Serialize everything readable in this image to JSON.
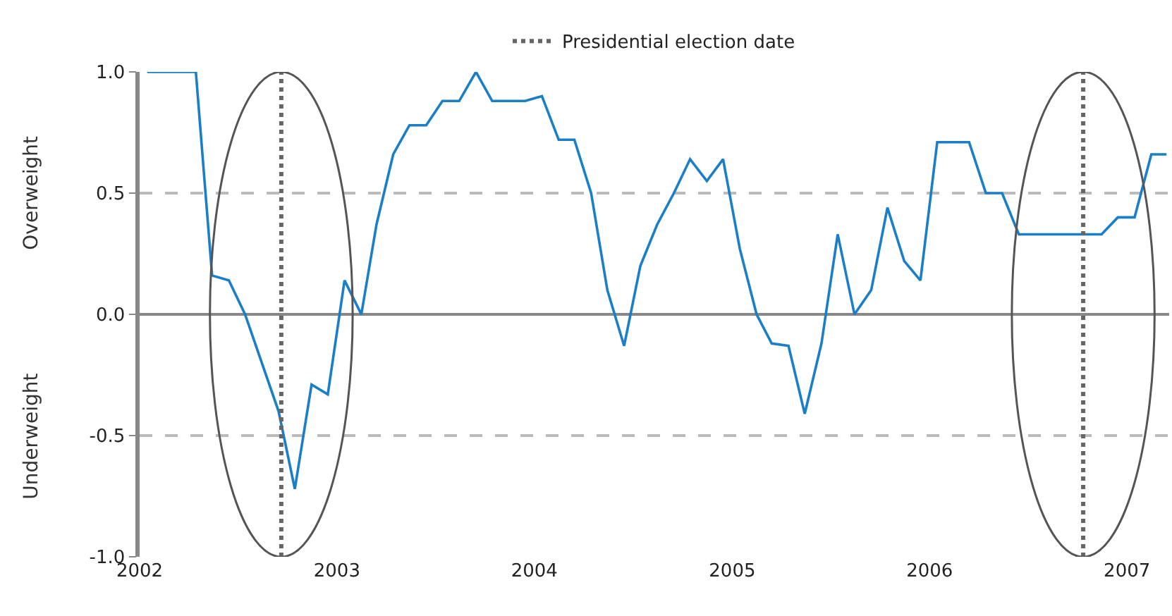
{
  "chart_data": {
    "type": "line",
    "x": [
      "2002-01-15",
      "2002-02-15",
      "2002-03-15",
      "2002-04-15",
      "2002-05-15",
      "2002-06-15",
      "2002-07-15",
      "2002-08-15",
      "2002-09-15",
      "2002-10-15",
      "2002-11-15",
      "2002-12-15",
      "2003-01-15",
      "2003-02-15",
      "2003-03-15",
      "2003-04-15",
      "2003-05-15",
      "2003-06-15",
      "2003-07-15",
      "2003-08-15",
      "2003-09-15",
      "2003-10-15",
      "2003-11-15",
      "2003-12-15",
      "2004-01-15",
      "2004-02-15",
      "2004-03-15",
      "2004-04-15",
      "2004-05-15",
      "2004-06-15",
      "2004-07-15",
      "2004-08-15",
      "2004-09-15",
      "2004-10-15",
      "2004-11-15",
      "2004-12-15",
      "2005-01-15",
      "2005-02-15",
      "2005-03-15",
      "2005-04-15",
      "2005-05-15",
      "2005-06-15",
      "2005-07-15",
      "2005-08-15",
      "2005-09-15",
      "2005-10-15",
      "2005-11-15",
      "2005-12-15",
      "2006-01-15",
      "2006-02-15",
      "2006-03-15",
      "2006-04-15",
      "2006-05-15",
      "2006-06-15",
      "2006-07-15",
      "2006-08-15",
      "2006-09-15",
      "2006-10-15",
      "2006-11-15",
      "2006-12-15",
      "2007-01-15",
      "2007-02-15",
      "2007-03-15"
    ],
    "series": [
      {
        "color": "#1a7fc6",
        "values": [
          1.0,
          1.0,
          1.0,
          1.0,
          0.16,
          0.14,
          0.0,
          -0.2,
          -0.4,
          -0.72,
          -0.29,
          -0.33,
          0.14,
          0.0,
          0.37,
          0.66,
          0.78,
          0.78,
          0.88,
          0.88,
          1.0,
          0.88,
          0.88,
          0.88,
          0.9,
          0.72,
          0.72,
          0.5,
          0.1,
          -0.13,
          0.2,
          0.37,
          0.5,
          0.64,
          0.55,
          0.64,
          0.27,
          0.0,
          -0.12,
          -0.13,
          -0.41,
          -0.12,
          0.33,
          0.0,
          0.1,
          0.44,
          0.22,
          0.14,
          0.71,
          0.71,
          0.71,
          0.5,
          0.5,
          0.33,
          0.33,
          0.33,
          0.33,
          0.33,
          0.33,
          0.4,
          0.4,
          0.66,
          0.66
        ]
      }
    ],
    "xlim": [
      "2002-01-01",
      "2007-03-20"
    ],
    "xticks": [
      "2002",
      "2003",
      "2004",
      "2005",
      "2006",
      "2007"
    ],
    "ylim": [
      -1.0,
      1.0
    ],
    "yticks": [
      {
        "value": -1.0,
        "label": "-1.0"
      },
      {
        "value": -0.5,
        "label": "-0.5"
      },
      {
        "value": 0,
        "label": "0.0"
      },
      {
        "value": 0.5,
        "label": "0.5"
      },
      {
        "value": 1.0,
        "label": "1.0"
      }
    ],
    "grid": "y",
    "legend": "top",
    "line_style": "solid",
    "marker": "none",
    "ref_lines": [
      {
        "axis": "x",
        "value": "2002-09-20",
        "label": "Presidential election date",
        "color": "#666666",
        "line_style": "dotted"
      },
      {
        "axis": "x",
        "value": "2006-10-12",
        "color": "#666666",
        "line_style": "dotted"
      }
    ],
    "annotations": [
      "Overweight",
      "Underweight"
    ]
  }
}
